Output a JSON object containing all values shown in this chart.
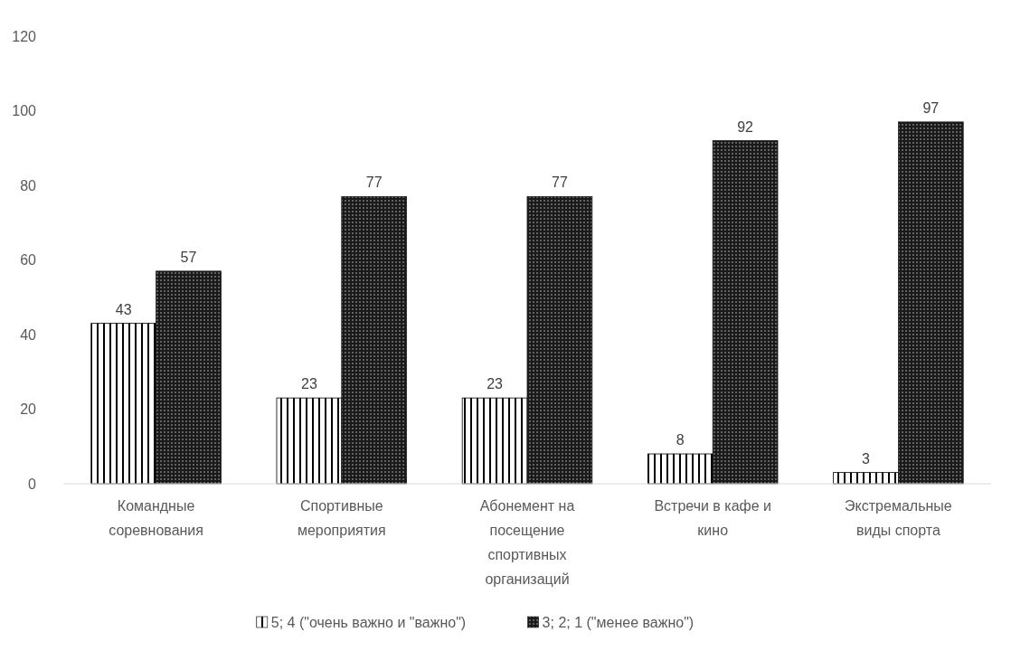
{
  "chart_data": {
    "type": "bar",
    "categories": [
      "Командные соревнования",
      "Спортивные мероприятия",
      "Абонемент на посещение спортивных организаций",
      "Встречи в кафе и кино",
      "Экстремальные виды спорта"
    ],
    "series": [
      {
        "name": "5; 4 (\"очень важно и \"важно\")",
        "color": "#000000",
        "values": [
          43,
          23,
          23,
          8,
          3
        ]
      },
      {
        "name": "3; 2; 1 (\"менее важно\")",
        "color": "#1a1a1a",
        "values": [
          57,
          77,
          77,
          92,
          97
        ]
      }
    ],
    "ylim": [
      0,
      120
    ],
    "yticks": [
      0,
      20,
      40,
      60,
      80,
      100,
      120
    ],
    "grid": false,
    "data_labels": true,
    "legend": "bottom"
  }
}
